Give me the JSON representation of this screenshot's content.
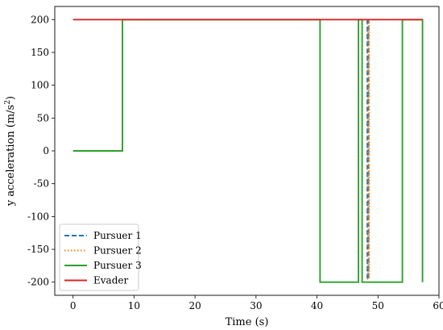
{
  "chart_data": {
    "type": "line",
    "xlabel": "Time (s)",
    "ylabel": "y acceleration (m/s",
    "ylabel_sup": "2",
    "ylabel_end": ")",
    "xlim": [
      -3,
      60
    ],
    "ylim": [
      -220,
      220
    ],
    "xticks": [
      0,
      10,
      20,
      30,
      40,
      50,
      60
    ],
    "yticks": [
      -200,
      -150,
      -100,
      -50,
      0,
      50,
      100,
      150,
      200
    ],
    "grid": false,
    "legend_position": "lower-left",
    "series": [
      {
        "name": "Pursuer 1",
        "color": "#1f77b4",
        "dash": "dashed",
        "x": [
          48.25,
          48.25,
          48.45,
          48.45
        ],
        "y": [
          200,
          -195,
          -195,
          200
        ]
      },
      {
        "name": "Pursuer 2",
        "color": "#ff7f0e",
        "dash": "dotted",
        "x": [
          48.35,
          48.35,
          48.55,
          48.55
        ],
        "y": [
          200,
          -195,
          -195,
          200
        ]
      },
      {
        "name": "Pursuer 3",
        "color": "#2ca02c",
        "dash": "solid",
        "x": [
          0,
          8.1,
          8.1,
          40.5,
          40.5,
          46.8,
          46.8,
          47.4,
          47.4,
          54.0,
          54.0,
          57.3,
          57.3
        ],
        "y": [
          0,
          0,
          200,
          200,
          -200,
          -200,
          200,
          200,
          -200,
          -200,
          200,
          200,
          -200
        ]
      },
      {
        "name": "Evader",
        "color": "#d62728",
        "dash": "solid",
        "x": [
          0,
          57.3
        ],
        "y": [
          200,
          200
        ]
      }
    ]
  }
}
